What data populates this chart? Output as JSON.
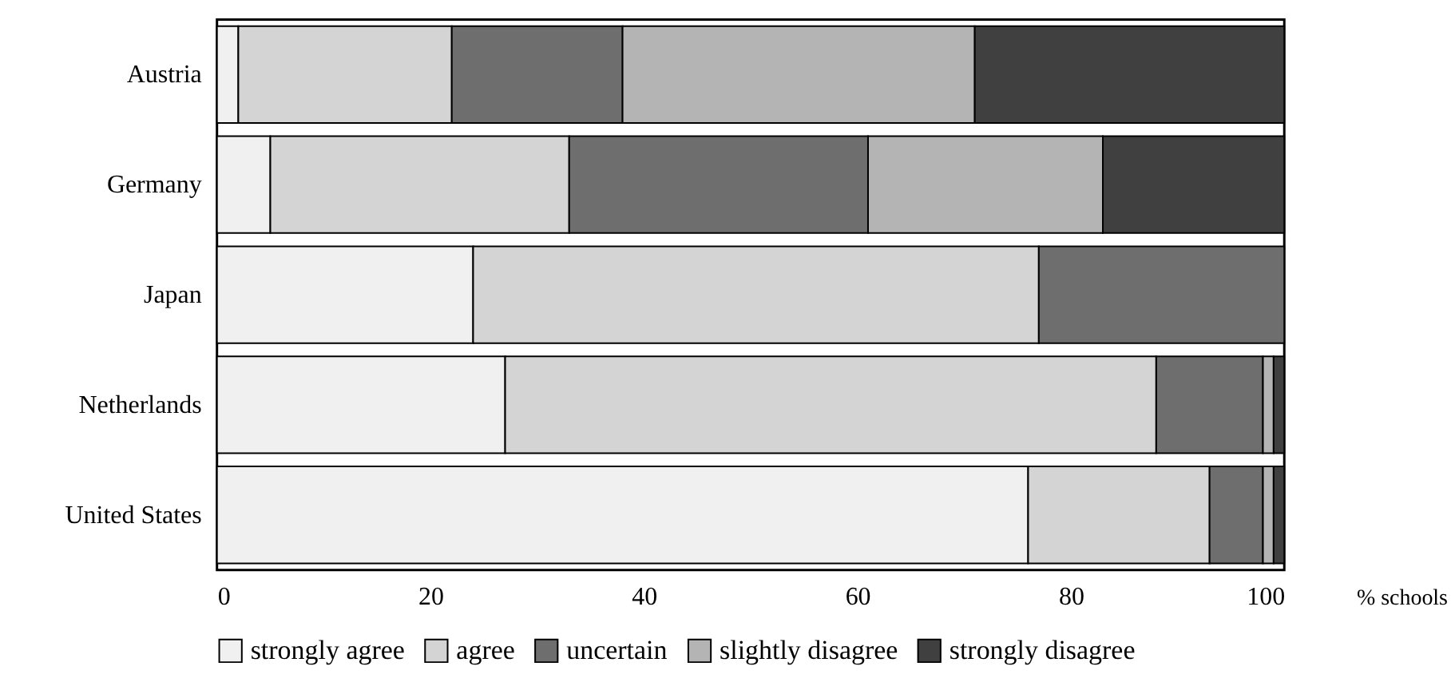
{
  "chart_data": {
    "type": "bar",
    "orientation": "horizontal",
    "stacked": true,
    "xlabel": "% schools",
    "categories": [
      "Austria",
      "Germany",
      "Japan",
      "Netherlands",
      "United States"
    ],
    "series": [
      {
        "name": "strongly agree",
        "color": "#f0f0f0",
        "values": [
          2,
          5,
          24,
          27,
          76
        ]
      },
      {
        "name": "agree",
        "color": "#d4d4d4",
        "values": [
          20,
          28,
          53,
          61,
          17
        ]
      },
      {
        "name": "uncertain",
        "color": "#6e6e6e",
        "values": [
          16,
          28,
          23,
          10,
          5
        ]
      },
      {
        "name": "slightly disagree",
        "color": "#b4b4b4",
        "values": [
          33,
          22,
          0,
          1,
          1
        ]
      },
      {
        "name": "strongly disagree",
        "color": "#404040",
        "values": [
          29,
          17,
          0,
          1,
          1
        ]
      }
    ],
    "xlim": [
      0,
      100
    ],
    "xticks": [
      0,
      20,
      40,
      60,
      80,
      100
    ],
    "grid": false,
    "legend": "bottom"
  }
}
